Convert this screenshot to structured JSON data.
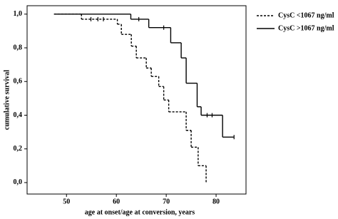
{
  "chart_data": {
    "type": "survival-step",
    "xlabel": "age at onset/age at conversion, years",
    "ylabel": "cumulative survival",
    "xlim": [
      42.1,
      86
    ],
    "ylim": [
      -0.068,
      1.05
    ],
    "xticks": [
      50,
      60,
      70,
      80
    ],
    "yticks": [
      {
        "value": 0,
        "label": "0,0"
      },
      {
        "value": 0.2,
        "label": "0,2"
      },
      {
        "value": 0.4,
        "label": "0,4"
      },
      {
        "value": 0.6,
        "label": "0,6"
      },
      {
        "value": 0.8,
        "label": "0,8"
      },
      {
        "value": 1,
        "label": "1,0"
      }
    ],
    "series": [
      {
        "name": "CysC <1067 ng/ml",
        "color": "#000000",
        "dash": true,
        "x": [
          47.5,
          53,
          60.2,
          61,
          63,
          64,
          66,
          67,
          68.5,
          69.5,
          70.5,
          74,
          75,
          76.4,
          78
        ],
        "values": [
          1.0,
          0.97,
          0.94,
          0.88,
          0.81,
          0.74,
          0.68,
          0.63,
          0.57,
          0.49,
          0.42,
          0.31,
          0.21,
          0.1,
          0.0
        ],
        "censored_x": [
          54.9,
          56.3,
          57.4
        ],
        "censored_values": [
          0.97,
          0.97,
          0.97
        ]
      },
      {
        "name": "CysC >1067 ng/ml",
        "color": "#000000",
        "dash": false,
        "x": [
          47.5,
          62.9,
          66.5,
          70.9,
          73,
          74,
          76.2,
          77
        ],
        "values": [
          1.0,
          0.97,
          0.92,
          0.83,
          0.74,
          0.59,
          0.45,
          0.4
        ],
        "censored_x": [
          64.5,
          69.5,
          78.2,
          79.2,
          83.6
        ],
        "censored_values": [
          0.97,
          0.92,
          0.4,
          0.4,
          0.27
        ],
        "extra_x": [
          81.3
        ],
        "extra_values": [
          0.27
        ]
      }
    ]
  }
}
